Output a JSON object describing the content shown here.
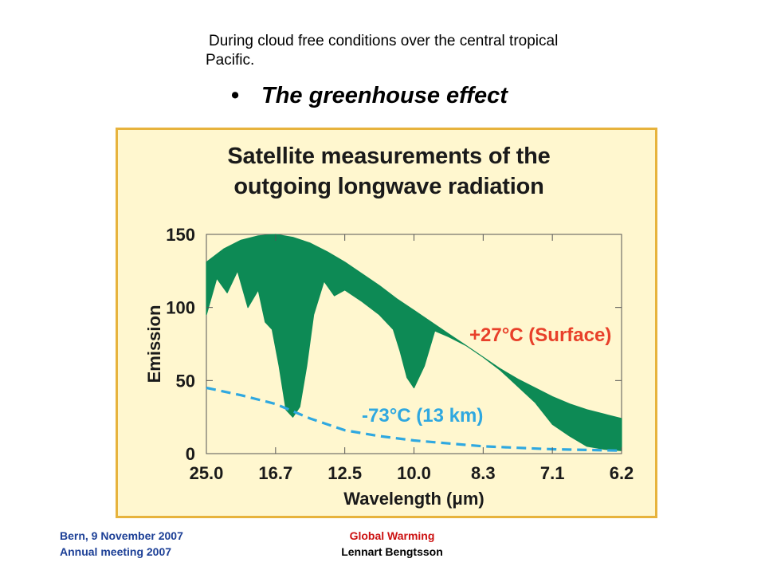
{
  "slide": {
    "caption_line1": "During cloud free conditions over the central tropical",
    "caption_line2": "Pacific.",
    "bullet": "•",
    "heading": "The greenhouse effect"
  },
  "figure": {
    "title_line1": "Satellite measurements of the",
    "title_line2": "outgoing longwave radiation",
    "background_color": "#fff7cf",
    "border_color": "#e7b33c"
  },
  "chart_data": {
    "type": "area",
    "title": "Satellite measurements of the outgoing longwave radiation",
    "xlabel": "Wavelength (μm)",
    "ylabel": "Emission",
    "x_tick_labels": [
      "25.0",
      "16.7",
      "12.5",
      "10.0",
      "8.3",
      "7.1",
      "6.2"
    ],
    "y_ticks": [
      0,
      50,
      100,
      150
    ],
    "ylim": [
      0,
      150
    ],
    "x_tick_wavenumbers": [
      400,
      600,
      800,
      1000,
      1200,
      1400,
      1600
    ],
    "x_range_wavenumber": [
      400,
      1600
    ],
    "grid": false,
    "series": [
      {
        "name": "+27°C (Surface)",
        "color": "#0d8a55",
        "label_color": "#e8402a",
        "upper_curve": {
          "x": [
            400,
            450,
            500,
            550,
            600,
            650,
            700,
            750,
            800,
            850,
            900,
            950,
            1000,
            1050,
            1100,
            1150,
            1200,
            1250,
            1300,
            1350,
            1400,
            1450,
            1500,
            1550,
            1600
          ],
          "y": [
            131,
            140,
            146,
            149,
            150,
            148,
            144,
            138,
            131,
            123,
            115,
            106,
            98,
            90,
            82,
            74,
            66,
            58,
            51,
            45,
            39,
            34,
            30,
            27,
            24
          ]
        },
        "observed_curve": {
          "x": [
            400,
            430,
            460,
            490,
            520,
            550,
            570,
            590,
            610,
            630,
            650,
            670,
            690,
            710,
            740,
            770,
            800,
            850,
            900,
            940,
            960,
            980,
            1000,
            1030,
            1060,
            1100,
            1150,
            1200,
            1250,
            1300,
            1350,
            1400,
            1450,
            1500,
            1550,
            1600
          ],
          "y": [
            95,
            120,
            110,
            125,
            100,
            112,
            90,
            85,
            60,
            30,
            25,
            32,
            60,
            95,
            118,
            108,
            112,
            104,
            95,
            85,
            70,
            52,
            45,
            60,
            84,
            80,
            74,
            66,
            57,
            46,
            35,
            20,
            12,
            5,
            3,
            2
          ]
        }
      },
      {
        "name": "-73°C (13 km)",
        "color": "#2fa8e0",
        "label_color": "#2fa8e0",
        "style": "dashed",
        "x": [
          400,
          500,
          600,
          700,
          800,
          900,
          1000,
          1100,
          1200,
          1300,
          1400,
          1500,
          1600
        ],
        "y": [
          45,
          40,
          34,
          24,
          16,
          12,
          9,
          7,
          5,
          4,
          3,
          2.5,
          2
        ]
      }
    ],
    "annotations": [
      {
        "text": "+27°C (Surface)",
        "series": 0
      },
      {
        "text": "-73°C (13 km)",
        "series": 1
      }
    ]
  },
  "footer": {
    "left_line1": "Bern, 9 November  2007",
    "left_line2": "Annual  meeting  2007",
    "right_line1": "Global  Warming",
    "right_line2": "Lennart  Bengtsson"
  }
}
